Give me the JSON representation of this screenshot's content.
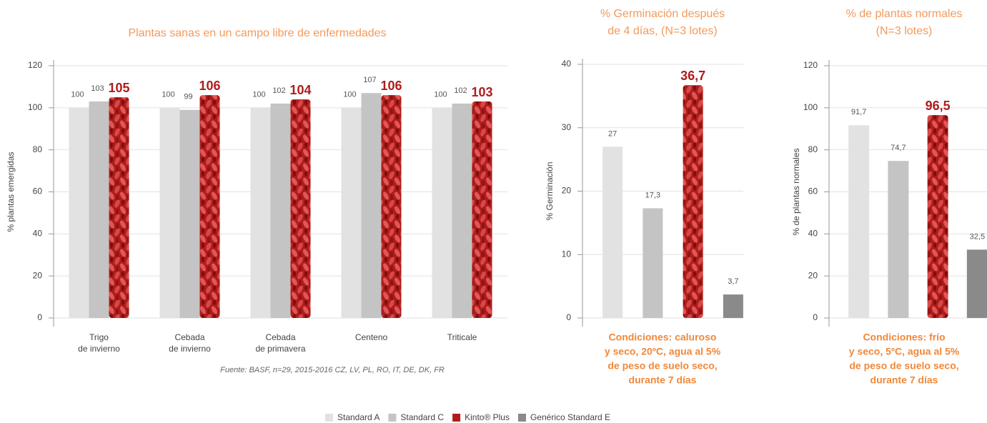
{
  "chart_data": [
    {
      "type": "bar",
      "title": [
        "Plantas sanas en un campo libre de enfermedades"
      ],
      "ylabel": "% plantas emergidas",
      "categories": [
        [
          "Trigo",
          "de invierno"
        ],
        [
          "Cebada",
          "de invierno"
        ],
        [
          "Cebada",
          "de primavera"
        ],
        [
          "Centeno"
        ],
        [
          "Triticale"
        ]
      ],
      "series": [
        {
          "name": "Standard A",
          "color": "#e2e2e2",
          "values": [
            100,
            100,
            100,
            100,
            100
          ]
        },
        {
          "name": "Standard C",
          "color": "#c4c4c4",
          "values": [
            103,
            99,
            102,
            107,
            102
          ]
        },
        {
          "name": "Kinto® Plus",
          "color": "#b01c1c",
          "values": [
            105,
            106,
            104,
            106,
            103
          ]
        }
      ],
      "ylim": [
        0,
        120
      ],
      "yticks": [
        0,
        20,
        40,
        60,
        80,
        100,
        120
      ],
      "grid": true,
      "source": "Fuente: BASF, n=29, 2015-2016 CZ, LV, PL, RO, IT, DE, DK, FR"
    },
    {
      "type": "bar",
      "title": [
        "% Germinación después",
        "de 4 días,   (N=3 lotes)"
      ],
      "ylabel": "% Germinación",
      "categories": [
        null
      ],
      "series": [
        {
          "name": "Standard A",
          "color": "#e2e2e2",
          "values": [
            27
          ]
        },
        {
          "name": "Standard C",
          "color": "#c4c4c4",
          "values": [
            17.3
          ],
          "value_labels": [
            "17,3"
          ]
        },
        {
          "name": "Kinto® Plus",
          "color": "#b01c1c",
          "values": [
            36.7
          ],
          "value_labels": [
            "36,7"
          ]
        },
        {
          "name": "Genérico Standard E",
          "color": "#8a8a8a",
          "values": [
            3.7
          ],
          "value_labels": [
            "3,7"
          ]
        }
      ],
      "ylim": [
        0,
        40
      ],
      "yticks": [
        0,
        10,
        20,
        30,
        40
      ],
      "grid": true,
      "note": [
        "Condiciones: caluroso",
        "y seco, 20ºC, agua al 5%",
        "de peso de suelo seco,",
        "durante 7 días"
      ]
    },
    {
      "type": "bar",
      "title": [
        "% de plantas normales",
        "(N=3 lotes)"
      ],
      "ylabel": "% de plantas normales",
      "categories": [
        null
      ],
      "series": [
        {
          "name": "Standard A",
          "color": "#e2e2e2",
          "values": [
            91.7
          ],
          "value_labels": [
            "91,7"
          ]
        },
        {
          "name": "Standard C",
          "color": "#c4c4c4",
          "values": [
            74.7
          ],
          "value_labels": [
            "74,7"
          ]
        },
        {
          "name": "Kinto® Plus",
          "color": "#b01c1c",
          "values": [
            96.5
          ],
          "value_labels": [
            "96,5"
          ]
        },
        {
          "name": "Genérico Standard E",
          "color": "#8a8a8a",
          "values": [
            32.5
          ],
          "value_labels": [
            "32,5"
          ]
        }
      ],
      "ylim": [
        0,
        120
      ],
      "yticks": [
        0,
        20,
        40,
        60,
        80,
        100,
        120
      ],
      "grid": true,
      "note": [
        "Condiciones: frío",
        "y seco, 5ºC, agua al 5%",
        "de peso de suelo seco,",
        "durante 7 días"
      ]
    }
  ]
}
